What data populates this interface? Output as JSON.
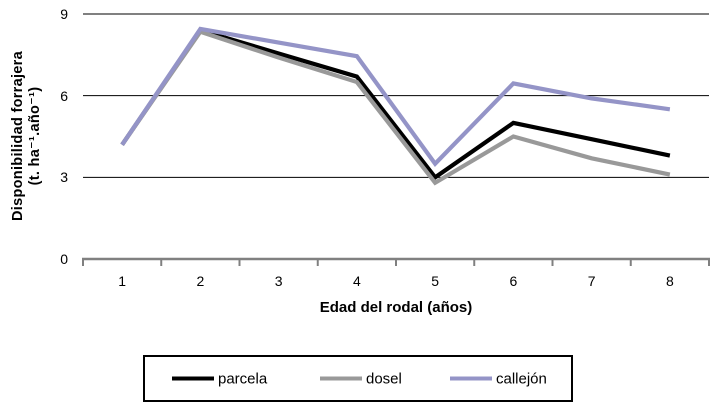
{
  "chart_data": {
    "type": "line",
    "title": "",
    "xlabel": "Edad del rodal (años)",
    "ylabel_line1": "Disponibilidad forrajera",
    "ylabel_line2": "(t. ha⁻¹.año⁻¹)",
    "x": [
      "1",
      "2",
      "3",
      "4",
      "5",
      "6",
      "7",
      "8"
    ],
    "yticks": [
      0,
      3,
      6,
      9
    ],
    "ylim": [
      0,
      9
    ],
    "grid": "horizontal-only",
    "legend_position": "bottom",
    "series": [
      {
        "name": "parcela",
        "color": "#000000",
        "values": [
          4.2,
          8.4,
          7.55,
          6.7,
          3.0,
          5.0,
          4.4,
          3.8
        ]
      },
      {
        "name": "dosel",
        "color": "#999999",
        "values": [
          4.2,
          8.35,
          7.4,
          6.5,
          2.8,
          4.5,
          3.7,
          3.1
        ]
      },
      {
        "name": "callejón",
        "color": "#9494c7",
        "values": [
          4.2,
          8.45,
          7.95,
          7.45,
          3.5,
          6.45,
          5.9,
          5.5
        ]
      }
    ]
  },
  "colors": {
    "axis_line": "#808080",
    "gridline": "#000000",
    "legend_border": "#000000",
    "background": "#ffffff"
  }
}
